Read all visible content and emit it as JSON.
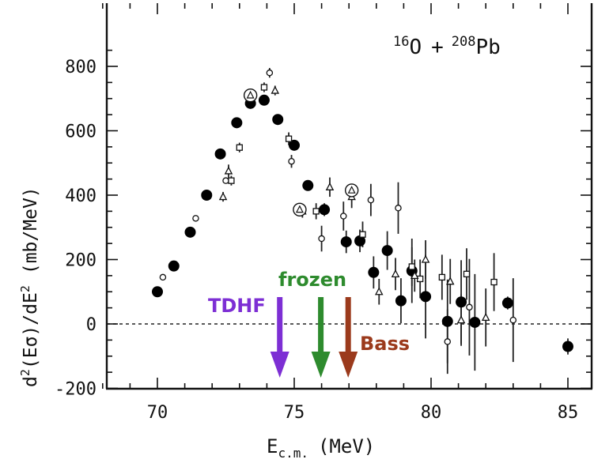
{
  "chart_data": {
    "type": "scatter",
    "title": "",
    "reaction": {
      "a_sup": "16",
      "a": "O",
      "plus": "+",
      "b_sup": "208",
      "b": "Pb"
    },
    "xlabel": {
      "main": "E",
      "sub": "c.m.",
      "unit": "(MeV)"
    },
    "ylabel": {
      "main": "d",
      "sup1": "2",
      "mid": "(Eσ)/dE",
      "sup2": "2",
      "unit": "(mb/MeV)"
    },
    "xlim": [
      68,
      86
    ],
    "ylim": [
      -200,
      900
    ],
    "x_ticks": [
      "70",
      "75",
      "80",
      "85"
    ],
    "y_ticks": [
      "-200",
      "0",
      "200",
      "400",
      "600",
      "800"
    ],
    "zero_line": "dashed",
    "series": [
      {
        "marker": "filled-circle",
        "points": [
          [
            70.0,
            100,
            0
          ],
          [
            70.6,
            180,
            0
          ],
          [
            71.2,
            285,
            0
          ],
          [
            71.8,
            400,
            0
          ],
          [
            72.3,
            528,
            0
          ],
          [
            72.9,
            625,
            0
          ],
          [
            73.4,
            685,
            0
          ],
          [
            73.9,
            695,
            0
          ],
          [
            74.4,
            635,
            0
          ],
          [
            75.0,
            555,
            10
          ],
          [
            75.5,
            430,
            15
          ],
          [
            76.1,
            355,
            20
          ],
          [
            76.9,
            255,
            35
          ],
          [
            77.4,
            258,
            35
          ],
          [
            77.9,
            160,
            50
          ],
          [
            78.4,
            228,
            60
          ],
          [
            78.9,
            72,
            70
          ],
          [
            79.3,
            165,
            100
          ],
          [
            79.8,
            85,
            130
          ],
          [
            80.6,
            8,
            130
          ],
          [
            81.1,
            68,
            130
          ],
          [
            81.6,
            5,
            150
          ],
          [
            82.8,
            65,
            20
          ],
          [
            85.0,
            -70,
            25
          ]
        ]
      },
      {
        "marker": "open-circle",
        "points": [
          [
            70.2,
            145,
            0
          ],
          [
            71.4,
            328,
            0
          ],
          [
            72.5,
            445,
            0
          ],
          [
            74.1,
            780,
            15
          ],
          [
            74.9,
            505,
            20
          ],
          [
            76.0,
            265,
            40
          ],
          [
            76.8,
            335,
            45
          ],
          [
            77.8,
            385,
            50
          ],
          [
            78.8,
            360,
            80
          ],
          [
            80.6,
            -55,
            100
          ],
          [
            81.4,
            52,
            150
          ],
          [
            83.0,
            12,
            130
          ]
        ]
      },
      {
        "marker": "open-square",
        "points": [
          [
            72.7,
            445,
            15
          ],
          [
            73.0,
            548,
            15
          ],
          [
            73.9,
            735,
            15
          ],
          [
            74.8,
            575,
            20
          ],
          [
            75.8,
            350,
            25
          ],
          [
            77.5,
            278,
            40
          ],
          [
            79.3,
            178,
            60
          ],
          [
            79.6,
            140,
            60
          ],
          [
            80.4,
            145,
            70
          ],
          [
            81.3,
            155,
            80
          ],
          [
            82.3,
            130,
            90
          ]
        ]
      },
      {
        "marker": "open-triangle",
        "points": [
          [
            72.4,
            395,
            15
          ],
          [
            72.6,
            475,
            20
          ],
          [
            74.3,
            725,
            15
          ],
          [
            75.3,
            350,
            20
          ],
          [
            76.3,
            425,
            30
          ],
          [
            77.1,
            395,
            35
          ],
          [
            78.7,
            155,
            50
          ],
          [
            79.4,
            150,
            50
          ],
          [
            79.8,
            200,
            60
          ],
          [
            80.7,
            132,
            70
          ],
          [
            81.1,
            12,
            80
          ],
          [
            82.0,
            20,
            90
          ],
          [
            78.1,
            100,
            40
          ]
        ]
      },
      {
        "marker": "circled-triangle",
        "points": [
          [
            73.4,
            710,
            0
          ],
          [
            75.2,
            355,
            0
          ],
          [
            77.1,
            415,
            0
          ]
        ]
      }
    ],
    "annotations": [
      {
        "label": "TDHF",
        "color": "#7d2fd4",
        "x": 74.5
      },
      {
        "label": "frozen",
        "color": "#2e8b2e",
        "x": 76.0
      },
      {
        "label": "Bass",
        "color": "#9b3a1c",
        "x": 77.0
      }
    ]
  }
}
